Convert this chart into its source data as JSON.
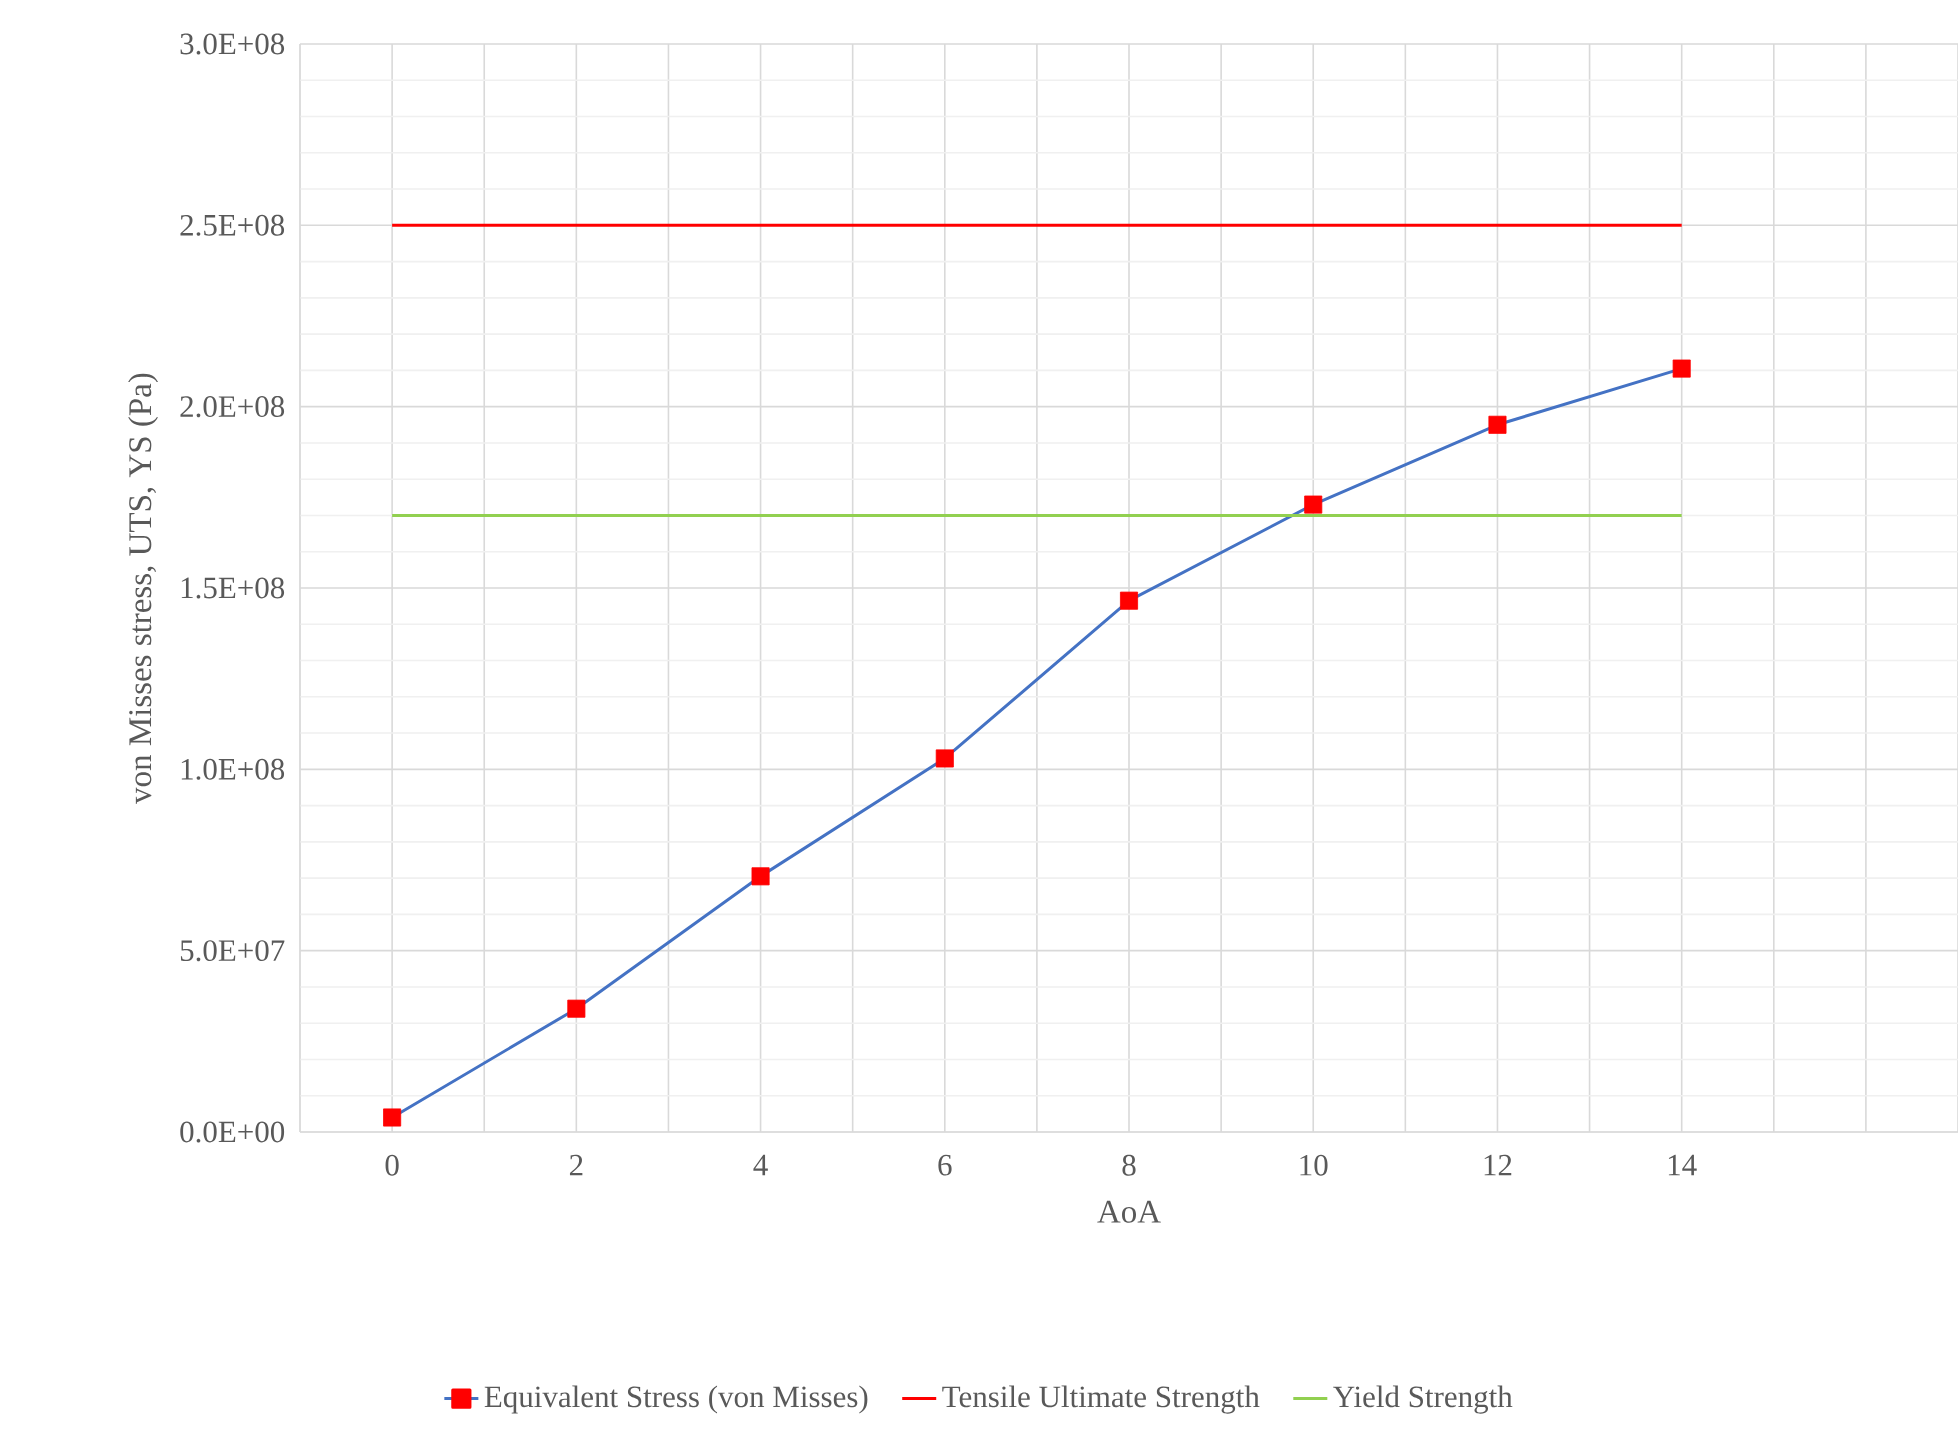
{
  "chart_data": {
    "type": "line",
    "xlabel": "AoA",
    "ylabel": "von Misses stress, UTS, YS (Pa)",
    "xlim": [
      -1,
      17
    ],
    "xticks": [
      {
        "value": -1,
        "label": null
      },
      {
        "value": 0,
        "label": "0"
      },
      {
        "value": 1,
        "label": null
      },
      {
        "value": 2,
        "label": "2"
      },
      {
        "value": 3,
        "label": null
      },
      {
        "value": 4,
        "label": "4"
      },
      {
        "value": 5,
        "label": null
      },
      {
        "value": 6,
        "label": "6"
      },
      {
        "value": 7,
        "label": null
      },
      {
        "value": 8,
        "label": "8"
      },
      {
        "value": 9,
        "label": null
      },
      {
        "value": 10,
        "label": "10"
      },
      {
        "value": 11,
        "label": null
      },
      {
        "value": 12,
        "label": "12"
      },
      {
        "value": 13,
        "label": null
      },
      {
        "value": 14,
        "label": "14"
      },
      {
        "value": 15,
        "label": null
      },
      {
        "value": 16,
        "label": null
      },
      {
        "value": 17,
        "label": null
      }
    ],
    "ylim": [
      0,
      300000000
    ],
    "yticks": [
      {
        "value": 0,
        "label": "0.0E+00"
      },
      {
        "value": 50000000,
        "label": "5.0E+07"
      },
      {
        "value": 100000000,
        "label": "1.0E+08"
      },
      {
        "value": 150000000,
        "label": "1.5E+08"
      },
      {
        "value": 200000000,
        "label": "2.0E+08"
      },
      {
        "value": 250000000,
        "label": "2.5E+08"
      },
      {
        "value": 300000000,
        "label": "3.0E+08"
      }
    ],
    "grid": true,
    "legend": "bottom",
    "marker": "square",
    "line_style": "solid",
    "series": [
      {
        "name": "Equivalent Stress (von Misses)",
        "color": "#4472c4",
        "colors": [
          "#ff0000",
          "#ff0000",
          "#ff0000",
          "#ff0000",
          "#ff0000",
          "#ff0000",
          "#ff0000",
          "#ff0000"
        ],
        "x": [
          0,
          2,
          4,
          6,
          8,
          10,
          12,
          14
        ],
        "values": [
          4000000,
          34000000,
          70500000,
          103000000,
          146500000,
          173000000,
          195000000,
          210500000
        ]
      },
      {
        "name": "Tensile Ultimate Strength",
        "color": "#ff0000",
        "marker": "none",
        "x": [
          0,
          14
        ],
        "values": [
          250000000,
          250000000
        ]
      },
      {
        "name": "Yield Strength",
        "color": "#92d050",
        "marker": "none",
        "x": [
          0,
          14
        ],
        "values": [
          170000000,
          170000000
        ]
      }
    ]
  }
}
